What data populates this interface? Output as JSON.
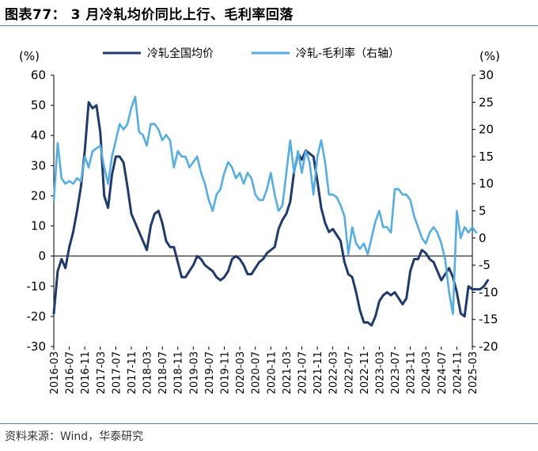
{
  "header": {
    "title": "图表77：  3 月冷轧均价同比上行、毛利率回落"
  },
  "footer": {
    "source": "资料来源：Wind，华泰研究"
  },
  "colors": {
    "series_dark": "#1f3a6e",
    "series_light": "#54aee6",
    "rule": "#5b7fa8"
  },
  "chart_data": {
    "type": "line",
    "left_unit": "(%)",
    "right_unit": "(%)",
    "ylim_left": [
      -30,
      60
    ],
    "ylim_right": [
      -20,
      30
    ],
    "yticks_left": [
      -30,
      -20,
      -10,
      0,
      10,
      20,
      30,
      40,
      50,
      60
    ],
    "yticks_right": [
      -20,
      -15,
      -10,
      -5,
      0,
      5,
      10,
      15,
      20,
      25,
      30
    ],
    "grid": false,
    "legend_position": "top",
    "x_labels": [
      "2016-03",
      "2016-07",
      "2016-11",
      "2017-03",
      "2017-07",
      "2017-11",
      "2018-03",
      "2018-07",
      "2018-11",
      "2019-03",
      "2019-07",
      "2019-11",
      "2020-03",
      "2020-07",
      "2020-11",
      "2021-03",
      "2021-07",
      "2021-11",
      "2022-03",
      "2022-07",
      "2022-11",
      "2023-03",
      "2023-07",
      "2023-11",
      "2024-03",
      "2024-07",
      "2024-11",
      "2025-03"
    ],
    "series": [
      {
        "name": "冷轧全国均价",
        "axis": "left",
        "color": "#1f3a6e",
        "start": "2016-03",
        "values": [
          -19,
          -5,
          -1,
          -4,
          3,
          8,
          15,
          23,
          35,
          51,
          49,
          50,
          41,
          20,
          16,
          27,
          33,
          33,
          31,
          23,
          14,
          11,
          8,
          5,
          2,
          10,
          14,
          15,
          11,
          5,
          3,
          3,
          -2,
          -7,
          -7,
          -5,
          -3,
          0,
          -1,
          -3,
          -4,
          -5,
          -7,
          -8,
          -7,
          -5,
          -1,
          0,
          -1,
          -3,
          -6,
          -6,
          -4,
          -2,
          -1,
          1,
          2,
          3,
          9,
          12,
          14,
          18,
          28,
          34,
          32,
          35,
          34,
          33,
          25,
          16,
          11,
          8,
          9,
          7,
          5,
          -2,
          -6,
          -7,
          -12,
          -18,
          -22,
          -22,
          -23,
          -20,
          -15,
          -13,
          -12,
          -13,
          -12,
          -14,
          -16,
          -14,
          -5,
          -1,
          -1,
          2,
          1,
          -1,
          -2,
          -5,
          -8,
          -6,
          -4,
          -7,
          -12,
          -19,
          -20,
          -10,
          -11,
          -11,
          -11,
          -10,
          -8
        ]
      },
      {
        "name": "冷轧-毛利率（右轴）",
        "axis": "right",
        "color": "#54aee6",
        "start": "2016-03",
        "values": [
          7,
          17.5,
          11,
          10,
          10.5,
          10,
          11,
          10.5,
          15,
          13,
          16,
          16.5,
          17,
          13,
          10,
          15,
          18,
          21,
          20,
          21,
          24,
          26,
          19.5,
          19,
          17,
          21,
          21,
          20,
          18,
          19,
          18,
          13,
          16,
          15,
          15,
          13,
          14,
          15,
          12,
          10,
          7,
          5,
          8,
          9,
          12,
          14,
          13,
          11,
          12,
          10,
          12,
          11,
          8,
          7,
          7,
          9,
          12,
          8,
          5,
          6,
          12,
          18,
          12,
          16,
          12,
          16,
          14,
          8,
          15,
          18,
          14,
          8,
          8,
          7.5,
          6,
          4,
          -3,
          2,
          -1,
          -2,
          -1,
          -3,
          0,
          3,
          5,
          2,
          2,
          1,
          9,
          9,
          8,
          8,
          7,
          4,
          2,
          0,
          -1,
          1,
          2,
          1,
          -1,
          -4,
          -10,
          -14,
          5,
          0,
          2,
          1,
          2,
          1
        ]
      }
    ]
  }
}
